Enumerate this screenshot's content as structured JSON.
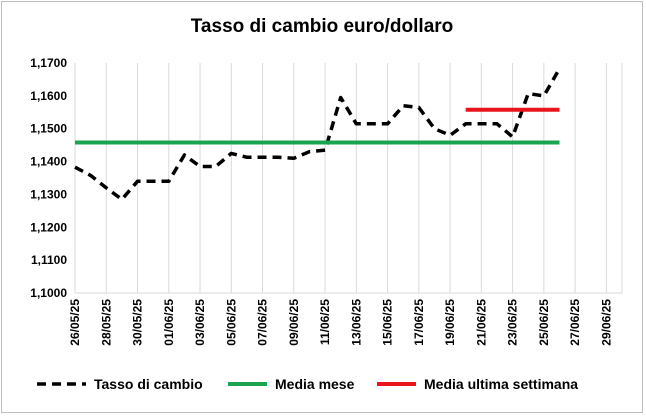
{
  "chart_data": {
    "type": "line",
    "title": "Tasso di cambio euro/dollaro",
    "xlabel": "",
    "ylabel": "",
    "ylim": [
      1.1,
      1.17
    ],
    "y_ticks": [
      "1,1000",
      "1,1100",
      "1,1200",
      "1,1300",
      "1,1400",
      "1,1500",
      "1,1600",
      "1,1700"
    ],
    "y_tick_values": [
      1.1,
      1.11,
      1.12,
      1.13,
      1.14,
      1.15,
      1.16,
      1.17
    ],
    "x_ticks": [
      "26/05/25",
      "28/05/25",
      "30/05/25",
      "01/06/25",
      "03/06/25",
      "05/06/25",
      "07/06/25",
      "09/06/25",
      "11/06/25",
      "13/06/25",
      "15/06/25",
      "17/06/25",
      "19/06/25",
      "21/06/25",
      "23/06/25",
      "25/06/25",
      "27/06/25",
      "29/06/25"
    ],
    "x_range": [
      "26/05/25",
      "30/06/25"
    ],
    "grid": "vertical",
    "legend_position": "bottom",
    "series": [
      {
        "name": "Tasso di cambio",
        "color": "#000000",
        "style": "dashed",
        "points": [
          [
            "26/05/25",
            1.1383
          ],
          [
            "27/05/25",
            1.1358
          ],
          [
            "28/05/25",
            1.132
          ],
          [
            "29/05/25",
            1.1285
          ],
          [
            "30/05/25",
            1.134
          ],
          [
            "31/05/25",
            1.134
          ],
          [
            "01/06/25",
            1.134
          ],
          [
            "02/06/25",
            1.142
          ],
          [
            "03/06/25",
            1.1385
          ],
          [
            "04/06/25",
            1.1385
          ],
          [
            "05/06/25",
            1.1425
          ],
          [
            "06/06/25",
            1.1413
          ],
          [
            "07/06/25",
            1.1413
          ],
          [
            "08/06/25",
            1.1413
          ],
          [
            "09/06/25",
            1.141
          ],
          [
            "10/06/25",
            1.143
          ],
          [
            "11/06/25",
            1.1435
          ],
          [
            "12/06/25",
            1.1595
          ],
          [
            "13/06/25",
            1.1515
          ],
          [
            "14/06/25",
            1.1515
          ],
          [
            "15/06/25",
            1.1515
          ],
          [
            "16/06/25",
            1.157
          ],
          [
            "17/06/25",
            1.1565
          ],
          [
            "18/06/25",
            1.15
          ],
          [
            "19/06/25",
            1.148
          ],
          [
            "20/06/25",
            1.1515
          ],
          [
            "21/06/25",
            1.1515
          ],
          [
            "22/06/25",
            1.1515
          ],
          [
            "23/06/25",
            1.1475
          ],
          [
            "24/06/25",
            1.1607
          ],
          [
            "25/06/25",
            1.16
          ],
          [
            "26/06/25",
            1.1683
          ]
        ]
      },
      {
        "name": "Media mese",
        "color": "#1ca34f",
        "style": "solid",
        "points": [
          [
            "26/05/25",
            1.1458
          ],
          [
            "26/06/25",
            1.1458
          ]
        ]
      },
      {
        "name": "Media ultima settimana",
        "color": "#e8151b",
        "style": "solid",
        "points": [
          [
            "20/06/25",
            1.1558
          ],
          [
            "26/06/25",
            1.1558
          ]
        ]
      }
    ]
  }
}
